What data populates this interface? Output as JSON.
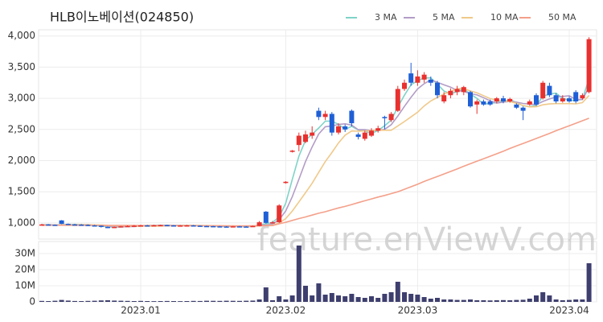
{
  "watermark": "feature.enViewV.com",
  "chart_data": [
    {
      "type": "candlestick",
      "title": "HLB이노베이션(024850)",
      "open": [
        960,
        975,
        970,
        1040,
        985,
        975,
        972,
        968,
        960,
        955,
        935,
        925,
        935,
        945,
        950,
        955,
        960,
        958,
        962,
        965,
        960,
        955,
        958,
        960,
        955,
        950,
        948,
        945,
        942,
        940,
        945,
        942,
        940,
        950,
        1180,
        1000,
        1010,
        1640,
        2140,
        2250,
        2300,
        2400,
        2800,
        2700,
        2750,
        2450,
        2550,
        2800,
        2420,
        2350,
        2400,
        2480,
        2700,
        2650,
        2800,
        3150,
        3400,
        3250,
        3300,
        3300,
        3250,
        2950,
        3050,
        3100,
        3100,
        3100,
        2900,
        2950,
        2950,
        2950,
        3000,
        2950,
        2900,
        2850,
        2900,
        3050,
        3000,
        3200,
        3050,
        2950,
        3000,
        3100,
        3000,
        3100
      ],
      "high": [
        985,
        980,
        975,
        1045,
        990,
        985,
        980,
        975,
        968,
        960,
        940,
        940,
        950,
        960,
        965,
        970,
        968,
        970,
        972,
        970,
        965,
        965,
        968,
        965,
        960,
        955,
        952,
        950,
        948,
        950,
        950,
        948,
        955,
        1030,
        1190,
        1030,
        1300,
        1670,
        2170,
        2450,
        2480,
        2550,
        2850,
        2800,
        2780,
        2600,
        2580,
        2820,
        2450,
        2480,
        2520,
        2560,
        2720,
        2780,
        3200,
        3300,
        3570,
        3450,
        3420,
        3350,
        3280,
        3100,
        3160,
        3200,
        3200,
        3120,
        2980,
        2980,
        2980,
        3020,
        3040,
        3010,
        2920,
        2870,
        2980,
        3080,
        3280,
        3250,
        3080,
        3050,
        3030,
        3130,
        3080,
        3980
      ],
      "low": [
        955,
        962,
        955,
        980,
        965,
        965,
        960,
        950,
        945,
        925,
        915,
        918,
        930,
        940,
        945,
        950,
        950,
        952,
        955,
        952,
        948,
        950,
        950,
        948,
        942,
        940,
        938,
        935,
        932,
        935,
        935,
        932,
        935,
        945,
        990,
        990,
        1000,
        1630,
        2130,
        2150,
        2280,
        2350,
        2650,
        2650,
        2400,
        2420,
        2460,
        2550,
        2340,
        2320,
        2380,
        2450,
        2500,
        2620,
        2780,
        3120,
        3200,
        3200,
        3250,
        3200,
        3000,
        2920,
        3000,
        3050,
        3050,
        2850,
        2750,
        2880,
        2880,
        2920,
        2920,
        2930,
        2830,
        2650,
        2880,
        2880,
        2980,
        3020,
        2920,
        2930,
        2930,
        2920,
        2980,
        3080
      ],
      "close": [
        975,
        970,
        960,
        985,
        975,
        972,
        968,
        960,
        955,
        935,
        925,
        935,
        945,
        950,
        955,
        960,
        958,
        962,
        965,
        960,
        955,
        958,
        960,
        955,
        950,
        948,
        945,
        942,
        940,
        945,
        942,
        940,
        950,
        1010,
        1000,
        1010,
        1280,
        1660,
        2160,
        2400,
        2420,
        2450,
        2700,
        2750,
        2450,
        2550,
        2500,
        2600,
        2380,
        2450,
        2480,
        2520,
        2680,
        2750,
        3150,
        3250,
        3250,
        3350,
        3380,
        3250,
        3050,
        3050,
        3120,
        3150,
        3180,
        2870,
        2950,
        2900,
        2900,
        3000,
        2950,
        2990,
        2850,
        2800,
        2950,
        2900,
        3250,
        3050,
        2950,
        3000,
        2950,
        2950,
        3050,
        3950
      ],
      "up_color": "#e8312f",
      "down_color": "#1f5fd6",
      "series": [
        {
          "name": "3 MA",
          "color": "#7fd3c8",
          "values": [
            970,
            972,
            968,
            972,
            973,
            977,
            972,
            967,
            961,
            950,
            938,
            932,
            935,
            943,
            950,
            955,
            958,
            960,
            962,
            962,
            960,
            958,
            958,
            958,
            955,
            951,
            948,
            945,
            942,
            942,
            942,
            942,
            944,
            967,
            987,
            1007,
            1097,
            1317,
            1700,
            2073,
            2327,
            2423,
            2523,
            2633,
            2633,
            2583,
            2500,
            2550,
            2493,
            2477,
            2437,
            2483,
            2560,
            2650,
            2860,
            3050,
            3217,
            3283,
            3327,
            3327,
            3227,
            3117,
            3073,
            3107,
            3150,
            3067,
            3000,
            2907,
            2917,
            2933,
            2950,
            2980,
            2930,
            2880,
            2867,
            2883,
            3033,
            3067,
            3083,
            3000,
            2967,
            2967,
            2983,
            3317
          ]
        },
        {
          "name": "5 MA",
          "color": "#b39dc6",
          "values": [
            968,
            970,
            968,
            970,
            973,
            972,
            972,
            972,
            966,
            958,
            947,
            940,
            939,
            940,
            942,
            949,
            954,
            957,
            960,
            961,
            960,
            960,
            960,
            958,
            956,
            953,
            952,
            948,
            945,
            944,
            943,
            942,
            943,
            957,
            968,
            982,
            1050,
            1192,
            1422,
            1702,
            1984,
            2218,
            2426,
            2544,
            2554,
            2580,
            2590,
            2570,
            2496,
            2496,
            2482,
            2486,
            2502,
            2576,
            2716,
            2870,
            3016,
            3150,
            3236,
            3296,
            3256,
            3216,
            3180,
            3124,
            3110,
            3074,
            3054,
            3010,
            2960,
            2924,
            2940,
            2948,
            2938,
            2918,
            2908,
            2898,
            2950,
            2990,
            3020,
            3030,
            3040,
            2980,
            2980,
            3180
          ]
        },
        {
          "name": "10 MA",
          "color": "#f0c98a",
          "values": [
            966,
            966,
            966,
            967,
            968,
            969,
            970,
            970,
            968,
            966,
            959,
            955,
            953,
            951,
            949,
            947,
            947,
            947,
            950,
            952,
            955,
            957,
            959,
            959,
            958,
            957,
            956,
            954,
            952,
            951,
            949,
            947,
            946,
            952,
            957,
            963,
            997,
            1069,
            1191,
            1337,
            1485,
            1636,
            1811,
            1985,
            2129,
            2283,
            2407,
            2476,
            2472,
            2476,
            2482,
            2489,
            2487,
            2487,
            2557,
            2627,
            2702,
            2777,
            2877,
            2957,
            3014,
            3068,
            3112,
            3153,
            3156,
            3118,
            3088,
            3043,
            2995,
            2970,
            2960,
            2947,
            2920,
            2885,
            2862,
            2865,
            2895,
            2910,
            2915,
            2915,
            2915,
            2911,
            2931,
            3046
          ]
        },
        {
          "name": "50 MA",
          "color": "#f4a08a",
          "values": [
            962,
            962,
            962,
            962,
            962,
            961,
            961,
            961,
            960,
            960,
            959,
            959,
            958,
            958,
            958,
            957,
            957,
            957,
            957,
            956,
            956,
            956,
            955,
            955,
            955,
            955,
            954,
            954,
            953,
            953,
            953,
            953,
            954,
            955,
            956,
            957,
            985,
            1010,
            1040,
            1070,
            1095,
            1125,
            1155,
            1180,
            1210,
            1240,
            1265,
            1295,
            1325,
            1355,
            1385,
            1415,
            1440,
            1470,
            1500,
            1540,
            1580,
            1620,
            1665,
            1705,
            1745,
            1785,
            1825,
            1865,
            1910,
            1950,
            1990,
            2030,
            2070,
            2110,
            2150,
            2195,
            2235,
            2275,
            2315,
            2355,
            2395,
            2435,
            2480,
            2520,
            2560,
            2600,
            2640,
            2680
          ]
        }
      ],
      "ylim": [
        740,
        4100
      ],
      "yticks": [
        {
          "value": 1000,
          "label": "1,000"
        },
        {
          "value": 1500,
          "label": "1,500"
        },
        {
          "value": 2000,
          "label": "2,000"
        },
        {
          "value": 2500,
          "label": "2,500"
        },
        {
          "value": 3000,
          "label": "3,000"
        },
        {
          "value": 3500,
          "label": "3,500"
        },
        {
          "value": 4000,
          "label": "4,000"
        }
      ],
      "grid": true
    },
    {
      "type": "bar",
      "categories": [
        null,
        null,
        null,
        null,
        null,
        null,
        null,
        null,
        null,
        null,
        null,
        null,
        null,
        null,
        null,
        "2023.01",
        null,
        null,
        null,
        null,
        null,
        null,
        null,
        null,
        null,
        null,
        null,
        null,
        null,
        null,
        null,
        null,
        null,
        null,
        null,
        null,
        null,
        "2023.02",
        null,
        null,
        null,
        null,
        null,
        null,
        null,
        null,
        null,
        null,
        null,
        null,
        null,
        null,
        null,
        null,
        null,
        null,
        null,
        "2023.03",
        null,
        null,
        null,
        null,
        null,
        null,
        null,
        null,
        null,
        null,
        null,
        null,
        null,
        null,
        null,
        null,
        null,
        null,
        null,
        null,
        null,
        null,
        "2023.04",
        null,
        null,
        null
      ],
      "values": [
        600000,
        500000,
        700000,
        1200000,
        800000,
        550000,
        500000,
        600000,
        700000,
        900000,
        1000000,
        800000,
        700000,
        600000,
        500000,
        600000,
        500000,
        450000,
        500000,
        550000,
        500000,
        450000,
        500000,
        600000,
        550000,
        700000,
        650000,
        600000,
        700000,
        650000,
        600000,
        700000,
        800000,
        1500000,
        9000000,
        1000000,
        3500000,
        1500000,
        4000000,
        35000000,
        10000000,
        4000000,
        11500000,
        4500000,
        5500000,
        4000000,
        3500000,
        5000000,
        3000000,
        2500000,
        3500000,
        2500000,
        5000000,
        6000000,
        12500000,
        6000000,
        5000000,
        4500000,
        3000000,
        2000000,
        2500000,
        1500000,
        1500000,
        1200000,
        1200000,
        1500000,
        1000000,
        1000000,
        900000,
        1000000,
        1100000,
        1000000,
        1200000,
        1300000,
        2000000,
        4000000,
        6000000,
        4000000,
        1500000,
        1000000,
        1200000,
        1500000,
        1500000,
        24000000
      ],
      "color": "#3e3f6e",
      "ylim": [
        0,
        37500000
      ],
      "yticks": [
        0,
        {
          "value": 10000000,
          "label": "10M"
        },
        {
          "value": 20000000,
          "label": "20M"
        },
        {
          "value": 30000000,
          "label": "30M"
        }
      ],
      "grid": true
    }
  ]
}
